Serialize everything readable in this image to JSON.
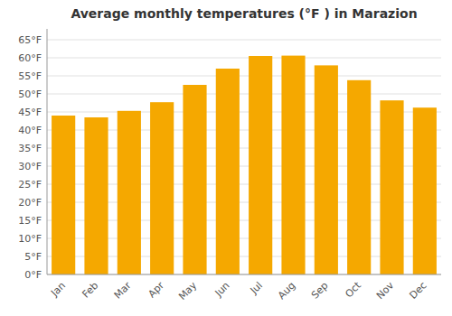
{
  "chart_data": {
    "type": "bar",
    "title": "Average monthly temperatures (°F ) in Marazion",
    "categories": [
      "Jan",
      "Feb",
      "Mar",
      "Apr",
      "May",
      "Jun",
      "Jul",
      "Aug",
      "Sep",
      "Oct",
      "Nov",
      "Dec"
    ],
    "values": [
      44.0,
      43.5,
      45.3,
      47.7,
      52.5,
      57.0,
      60.5,
      60.6,
      57.9,
      53.8,
      48.2,
      46.2
    ],
    "color": "#F5A800",
    "ylim": [
      0,
      68
    ],
    "yticks": [
      {
        "value": 0,
        "label": "0°F"
      },
      {
        "value": 5,
        "label": "5°F"
      },
      {
        "value": 10,
        "label": "10°F"
      },
      {
        "value": 15,
        "label": "15°F"
      },
      {
        "value": 20,
        "label": "20°F"
      },
      {
        "value": 25,
        "label": "25°F"
      },
      {
        "value": 30,
        "label": "30°F"
      },
      {
        "value": 35,
        "label": "35°F"
      },
      {
        "value": 40,
        "label": "40°F"
      },
      {
        "value": 45,
        "label": "45°F"
      },
      {
        "value": 50,
        "label": "50°F"
      },
      {
        "value": 55,
        "label": "55°F"
      },
      {
        "value": 60,
        "label": "60°F"
      },
      {
        "value": 65,
        "label": "65°F"
      }
    ],
    "grid": true
  }
}
